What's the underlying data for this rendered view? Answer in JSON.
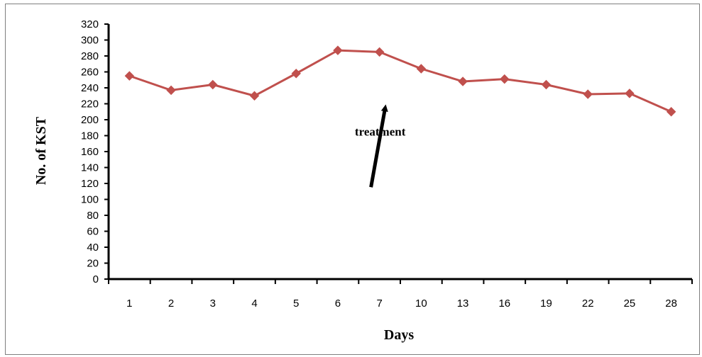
{
  "chart_data": {
    "type": "line",
    "title": "",
    "xlabel": "Days",
    "ylabel": "No. of KST",
    "categories": [
      "1",
      "2",
      "3",
      "4",
      "5",
      "6",
      "7",
      "10",
      "13",
      "16",
      "19",
      "22",
      "25",
      "28"
    ],
    "series": [
      {
        "values": [
          255,
          237,
          244,
          230,
          258,
          287,
          285,
          264,
          248,
          251,
          244,
          232,
          233,
          210
        ],
        "color": "#c0504d",
        "marker": "diamond"
      }
    ],
    "ylim": [
      0,
      320
    ],
    "yticks": [
      0,
      20,
      40,
      60,
      80,
      100,
      120,
      140,
      160,
      180,
      200,
      220,
      240,
      260,
      280,
      300,
      320
    ],
    "grid": false,
    "legend": "none",
    "annotations": [
      {
        "text": "treatment",
        "arrow_target_category": "7",
        "arrow_target_value": 222
      }
    ]
  }
}
